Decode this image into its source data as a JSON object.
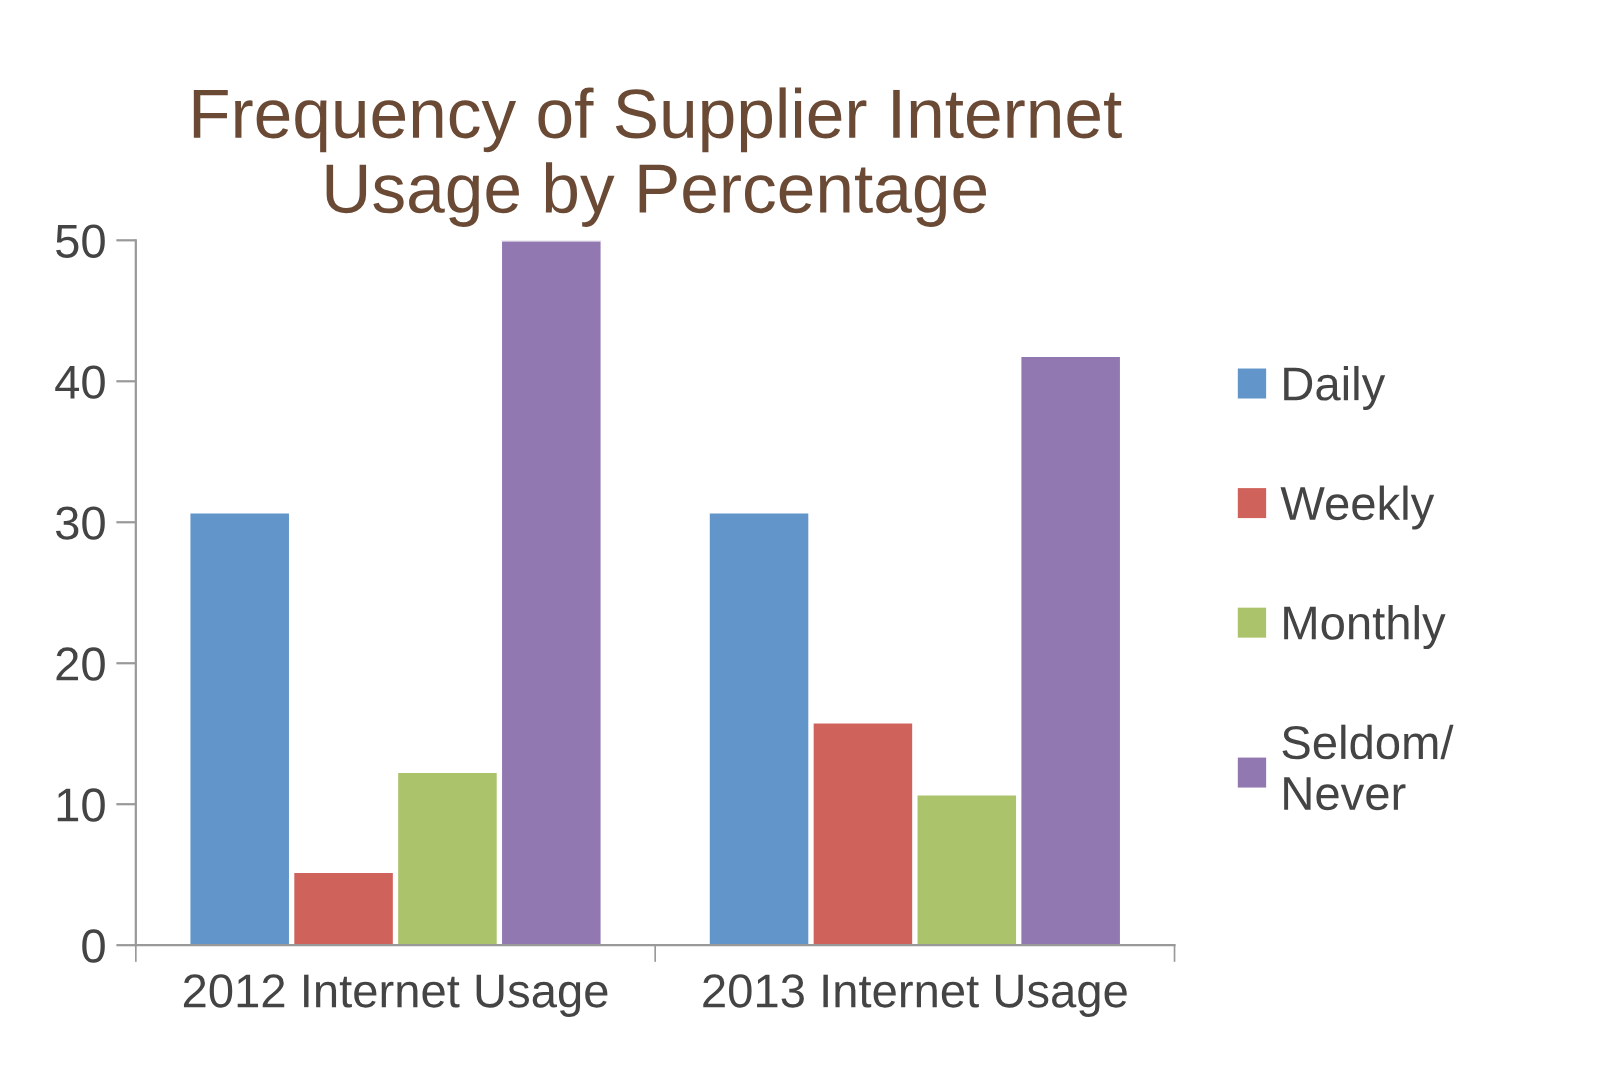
{
  "chart_data": {
    "type": "bar",
    "title": "Frequency of Supplier Internet\nUsage by Percentage",
    "categories": [
      "2012 Internet Usage",
      "2013 Internet Usage"
    ],
    "series": [
      {
        "name": "Daily",
        "color": "#6295c9",
        "values": [
          30.7,
          30.7
        ]
      },
      {
        "name": "Weekly",
        "color": "#cf635c",
        "values": [
          5.2,
          15.8
        ]
      },
      {
        "name": "Monthly",
        "color": "#abc46b",
        "values": [
          12.3,
          10.7
        ]
      },
      {
        "name": "Seldom/\nNever",
        "color": "#9278b1",
        "values": [
          50,
          41.8
        ]
      }
    ],
    "ylim": [
      0,
      50
    ],
    "yticks": [
      0,
      10,
      20,
      30,
      40,
      50
    ],
    "grid": false,
    "legend": "right"
  }
}
